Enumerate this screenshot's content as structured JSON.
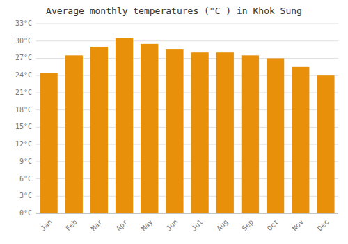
{
  "chart_data": {
    "type": "bar",
    "title": "Average monthly temperatures (°C ) in Khok Sung",
    "categories": [
      "Jan",
      "Feb",
      "Mar",
      "Apr",
      "May",
      "Jun",
      "Jul",
      "Aug",
      "Sep",
      "Oct",
      "Nov",
      "Dec"
    ],
    "values": [
      24.5,
      27.5,
      29.0,
      30.5,
      29.5,
      28.5,
      28.0,
      28.0,
      27.5,
      27.0,
      25.5,
      24.0
    ],
    "color": "#E8900A",
    "ylim": [
      0,
      33
    ],
    "yticks": [
      {
        "value": 0,
        "label": "0°C"
      },
      {
        "value": 3,
        "label": "3°C"
      },
      {
        "value": 6,
        "label": "6°C"
      },
      {
        "value": 9,
        "label": "9°C"
      },
      {
        "value": 12,
        "label": "12°C"
      },
      {
        "value": 15,
        "label": "15°C"
      },
      {
        "value": 18,
        "label": "18°C"
      },
      {
        "value": 21,
        "label": "21°C"
      },
      {
        "value": 24,
        "label": "24°C"
      },
      {
        "value": 27,
        "label": "27°C"
      },
      {
        "value": 30,
        "label": "30°C"
      },
      {
        "value": 33,
        "label": "33°C"
      }
    ],
    "grid": true
  }
}
